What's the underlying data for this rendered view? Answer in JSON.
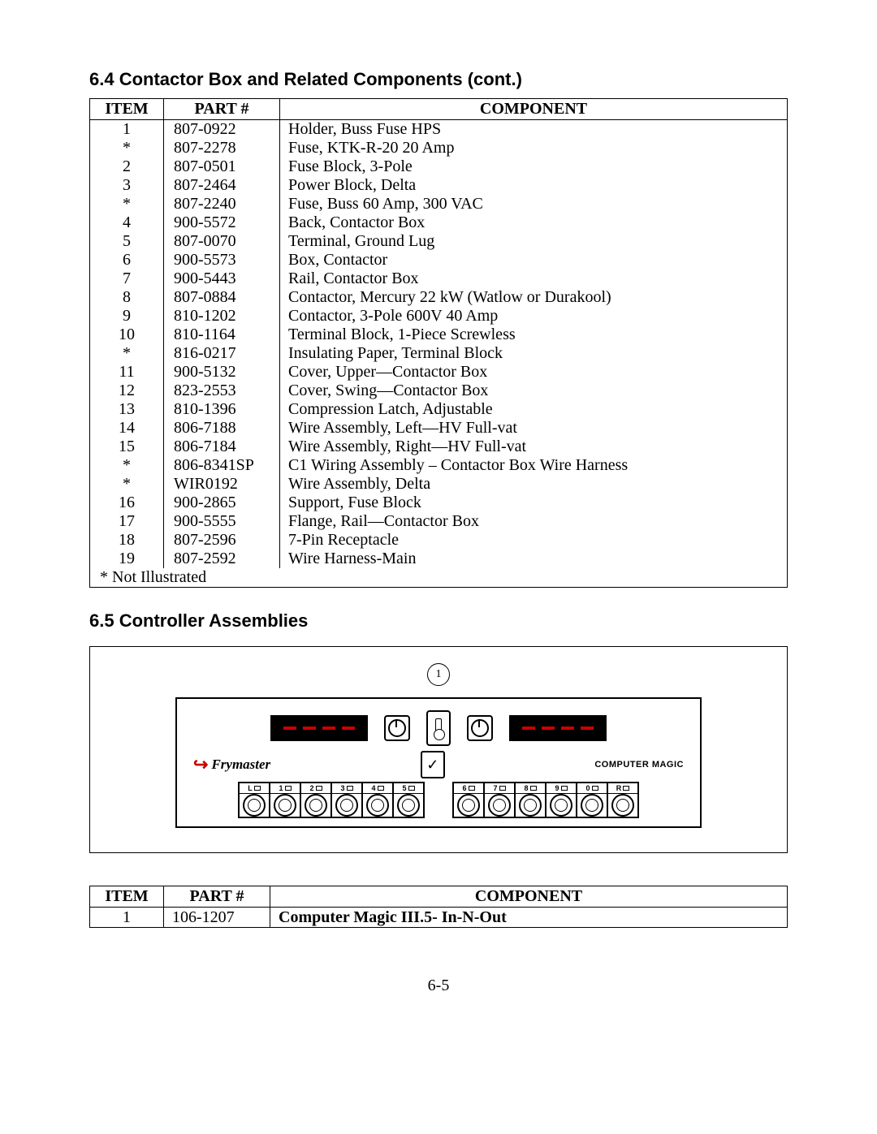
{
  "section1": {
    "heading": "6.4  Contactor Box and Related Components (cont.)",
    "columns": [
      "ITEM",
      "PART #",
      "COMPONENT"
    ],
    "rows": [
      {
        "item": "1",
        "part": "807-0922",
        "comp": "Holder, Buss Fuse HPS"
      },
      {
        "item": "*",
        "part": "807-2278",
        "comp": "Fuse, KTK-R-20 20 Amp"
      },
      {
        "item": "2",
        "part": "807-0501",
        "comp": "Fuse Block, 3-Pole"
      },
      {
        "item": "3",
        "part": "807-2464",
        "comp": "Power Block, Delta"
      },
      {
        "item": "*",
        "part": "807-2240",
        "comp": "Fuse, Buss 60 Amp, 300 VAC"
      },
      {
        "item": "4",
        "part": "900-5572",
        "comp": "Back, Contactor Box"
      },
      {
        "item": "5",
        "part": "807-0070",
        "comp": "Terminal, Ground Lug"
      },
      {
        "item": "6",
        "part": "900-5573",
        "comp": "Box, Contactor"
      },
      {
        "item": "7",
        "part": "900-5443",
        "comp": "Rail, Contactor Box"
      },
      {
        "item": "8",
        "part": "807-0884",
        "comp": "Contactor, Mercury 22 kW (Watlow or Durakool)"
      },
      {
        "item": "9",
        "part": "810-1202",
        "comp": "Contactor, 3-Pole 600V 40 Amp"
      },
      {
        "item": "10",
        "part": "810-1164",
        "comp": "Terminal Block, 1-Piece Screwless"
      },
      {
        "item": "*",
        "part": "816-0217",
        "comp": "Insulating Paper, Terminal Block"
      },
      {
        "item": "11",
        "part": "900-5132",
        "comp": "Cover, Upper—Contactor Box"
      },
      {
        "item": "12",
        "part": "823-2553",
        "comp": "Cover, Swing—Contactor Box"
      },
      {
        "item": "13",
        "part": "810-1396",
        "comp": "Compression Latch, Adjustable"
      },
      {
        "item": "14",
        "part": "806-7188",
        "comp": "Wire Assembly, Left—HV Full-vat"
      },
      {
        "item": "15",
        "part": "806-7184",
        "comp": "Wire Assembly, Right—HV Full-vat"
      },
      {
        "item": "*",
        "part": "806-8341SP",
        "comp": "C1 Wiring Assembly – Contactor Box Wire Harness"
      },
      {
        "item": "*",
        "part": "WIR0192",
        "comp": "Wire Assembly, Delta"
      },
      {
        "item": "16",
        "part": "900-2865",
        "comp": "Support, Fuse Block"
      },
      {
        "item": "17",
        "part": "900-5555",
        "comp": "Flange, Rail—Contactor Box"
      },
      {
        "item": "18",
        "part": "807-2596",
        "comp": "7-Pin Receptacle"
      },
      {
        "item": "19",
        "part": "807-2592",
        "comp": "Wire Harness-Main"
      }
    ],
    "footnote": "* Not Illustrated"
  },
  "section2": {
    "heading": "6.5  Controller Assemblies",
    "callout": "1",
    "brand_left": "Frymaster",
    "brand_right": "COMPUTER MAGIC",
    "keys_left": [
      "L",
      "1",
      "2",
      "3",
      "4",
      "5"
    ],
    "keys_right": [
      "6",
      "7",
      "8",
      "9",
      "0",
      "R"
    ],
    "columns": [
      "ITEM",
      "PART #",
      "COMPONENT"
    ],
    "rows": [
      {
        "item": "1",
        "part": "106-1207",
        "comp": "Computer Magic III.5- In-N-Out"
      }
    ]
  },
  "page_number": "6-5",
  "colors": {
    "accent_red": "#c00000",
    "text": "#000000",
    "background": "#ffffff"
  }
}
